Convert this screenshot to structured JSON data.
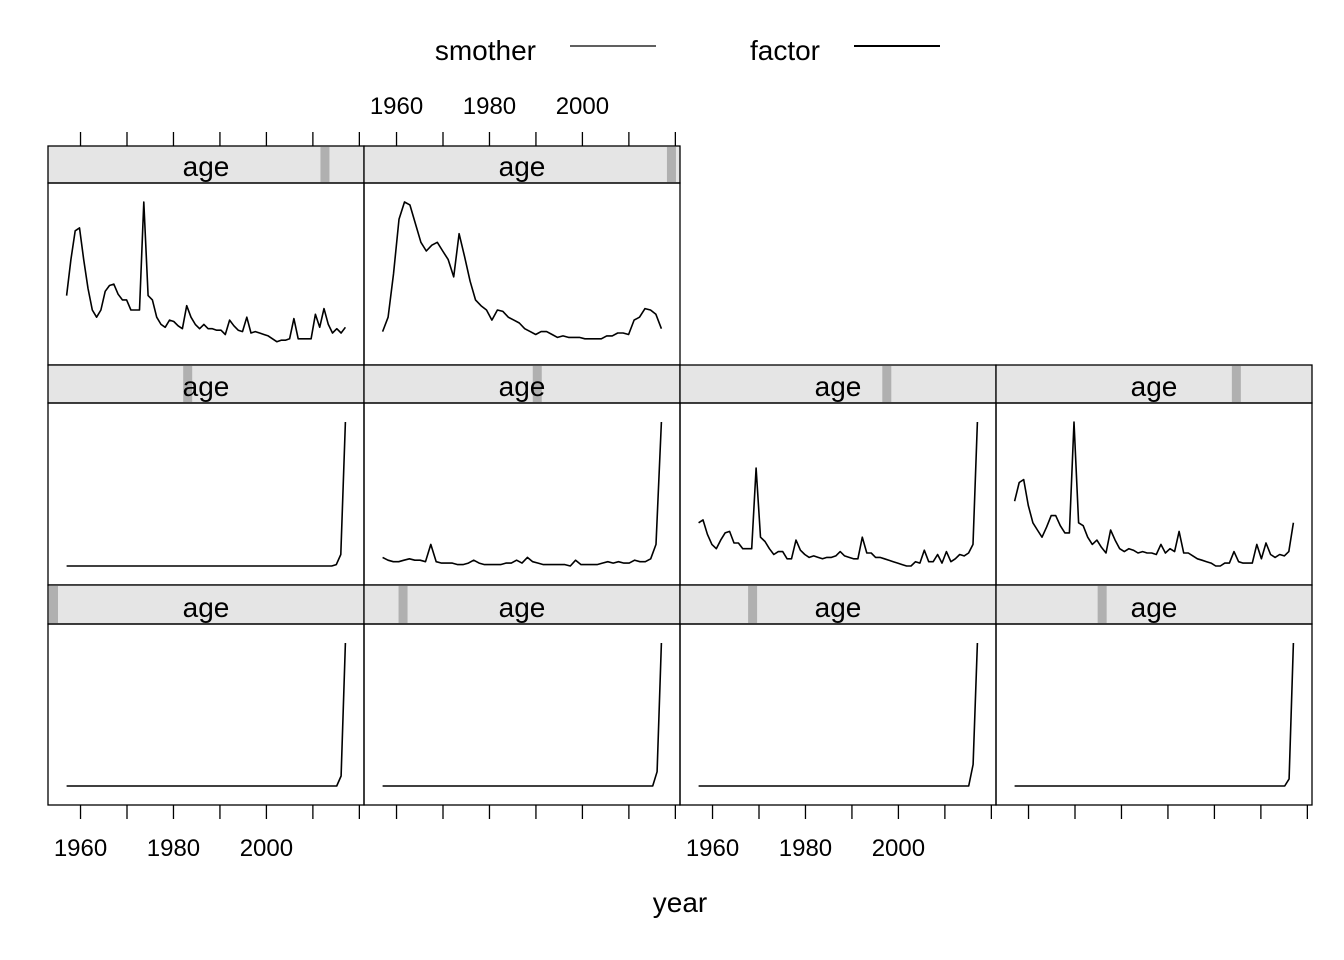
{
  "legend": {
    "items": [
      {
        "label": "smother",
        "stroke": "#000000",
        "weight": "thin"
      },
      {
        "label": "factor",
        "stroke": "#000000",
        "weight": "regular"
      }
    ]
  },
  "strip_label": "age",
  "xlabel": "year",
  "colors": {
    "strip_bg": "#e5e5e5",
    "strip_marker": "#b0b0b0",
    "line": "#000000",
    "frame": "#000000"
  },
  "chart_data": {
    "type": "line",
    "layout": {
      "columns": 4,
      "rows": 3
    },
    "xlim": [
      1953,
      2021
    ],
    "x_ticks": [
      1960,
      1970,
      1980,
      1990,
      2000,
      2010,
      2020
    ],
    "x_tick_labels": [
      1960,
      1980,
      2000
    ],
    "xlabel": "year",
    "panels": [
      {
        "row": 1,
        "col": 1,
        "strip": "age",
        "strip_level": 0.89,
        "x_start": 1957,
        "x_end": 2017,
        "y_values": [
          0.35,
          0.6,
          0.8,
          0.82,
          0.6,
          0.4,
          0.25,
          0.2,
          0.25,
          0.38,
          0.42,
          0.43,
          0.36,
          0.32,
          0.32,
          0.25,
          0.25,
          0.25,
          1.0,
          0.35,
          0.32,
          0.2,
          0.15,
          0.13,
          0.18,
          0.17,
          0.14,
          0.12,
          0.28,
          0.2,
          0.15,
          0.12,
          0.15,
          0.12,
          0.12,
          0.11,
          0.11,
          0.08,
          0.18,
          0.14,
          0.11,
          0.1,
          0.2,
          0.09,
          0.1,
          0.09,
          0.08,
          0.07,
          0.05,
          0.03,
          0.04,
          0.04,
          0.05,
          0.19,
          0.05,
          0.05,
          0.05,
          0.05,
          0.22,
          0.13,
          0.26,
          0.15,
          0.09,
          0.12,
          0.09,
          0.13
        ]
      },
      {
        "row": 1,
        "col": 2,
        "strip": "age",
        "strip_level": 0.99,
        "x_start": 1957,
        "x_end": 2017,
        "y_values": [
          0.1,
          0.2,
          0.5,
          0.88,
          1.0,
          0.98,
          0.85,
          0.72,
          0.66,
          0.7,
          0.72,
          0.66,
          0.6,
          0.48,
          0.78,
          0.62,
          0.45,
          0.32,
          0.28,
          0.25,
          0.18,
          0.25,
          0.24,
          0.2,
          0.18,
          0.16,
          0.12,
          0.1,
          0.08,
          0.1,
          0.1,
          0.08,
          0.06,
          0.07,
          0.06,
          0.06,
          0.06,
          0.05,
          0.05,
          0.05,
          0.05,
          0.07,
          0.07,
          0.09,
          0.09,
          0.08,
          0.18,
          0.2,
          0.26,
          0.25,
          0.22,
          0.12
        ]
      },
      {
        "row": 2,
        "col": 1,
        "strip": "age",
        "strip_level": 0.44,
        "x_start": 1957,
        "x_end": 2017,
        "y_values": [
          0.0,
          0.0,
          0.0,
          0.0,
          0.0,
          0.0,
          0.0,
          0.0,
          0.0,
          0.0,
          0.0,
          0.0,
          0.0,
          0.0,
          0.0,
          0.0,
          0.0,
          0.0,
          0.0,
          0.0,
          0.0,
          0.0,
          0.0,
          0.0,
          0.0,
          0.0,
          0.0,
          0.0,
          0.0,
          0.0,
          0.0,
          0.0,
          0.0,
          0.0,
          0.0,
          0.0,
          0.0,
          0.0,
          0.0,
          0.0,
          0.0,
          0.0,
          0.0,
          0.0,
          0.0,
          0.0,
          0.0,
          0.0,
          0.0,
          0.0,
          0.0,
          0.0,
          0.0,
          0.0,
          0.0,
          0.0,
          0.0,
          0.0,
          0.0,
          0.01,
          0.08,
          1.0
        ]
      },
      {
        "row": 2,
        "col": 2,
        "strip": "age",
        "strip_level": 0.55,
        "x_start": 1957,
        "x_end": 2017,
        "y_values": [
          0.06,
          0.04,
          0.03,
          0.03,
          0.04,
          0.05,
          0.04,
          0.04,
          0.03,
          0.15,
          0.03,
          0.02,
          0.02,
          0.02,
          0.01,
          0.01,
          0.02,
          0.04,
          0.02,
          0.01,
          0.01,
          0.01,
          0.01,
          0.02,
          0.02,
          0.04,
          0.02,
          0.06,
          0.03,
          0.02,
          0.01,
          0.01,
          0.01,
          0.01,
          0.01,
          0.0,
          0.04,
          0.01,
          0.01,
          0.01,
          0.01,
          0.02,
          0.03,
          0.02,
          0.03,
          0.02,
          0.02,
          0.04,
          0.03,
          0.03,
          0.05,
          0.15,
          1.0
        ]
      },
      {
        "row": 2,
        "col": 3,
        "strip": "age",
        "strip_level": 0.66,
        "x_start": 1957,
        "x_end": 2017,
        "y_values": [
          0.3,
          0.32,
          0.22,
          0.15,
          0.12,
          0.18,
          0.23,
          0.24,
          0.16,
          0.16,
          0.12,
          0.12,
          0.12,
          0.68,
          0.2,
          0.17,
          0.12,
          0.08,
          0.1,
          0.1,
          0.05,
          0.05,
          0.18,
          0.11,
          0.08,
          0.06,
          0.07,
          0.06,
          0.05,
          0.06,
          0.06,
          0.07,
          0.1,
          0.07,
          0.06,
          0.05,
          0.05,
          0.2,
          0.09,
          0.09,
          0.06,
          0.06,
          0.05,
          0.04,
          0.03,
          0.02,
          0.01,
          0.0,
          0.0,
          0.03,
          0.02,
          0.11,
          0.03,
          0.03,
          0.08,
          0.02,
          0.1,
          0.03,
          0.05,
          0.08,
          0.07,
          0.09,
          0.15,
          1.0
        ]
      },
      {
        "row": 2,
        "col": 4,
        "strip": "age",
        "strip_level": 0.77,
        "x_start": 1957,
        "x_end": 2017,
        "y_values": [
          0.45,
          0.58,
          0.6,
          0.42,
          0.3,
          0.25,
          0.2,
          0.27,
          0.35,
          0.35,
          0.28,
          0.23,
          0.23,
          1.0,
          0.3,
          0.28,
          0.2,
          0.15,
          0.18,
          0.13,
          0.09,
          0.25,
          0.18,
          0.12,
          0.1,
          0.12,
          0.11,
          0.09,
          0.1,
          0.09,
          0.09,
          0.08,
          0.15,
          0.09,
          0.12,
          0.1,
          0.24,
          0.09,
          0.09,
          0.07,
          0.05,
          0.04,
          0.03,
          0.02,
          0.0,
          0.0,
          0.02,
          0.02,
          0.1,
          0.03,
          0.02,
          0.02,
          0.02,
          0.15,
          0.05,
          0.16,
          0.08,
          0.06,
          0.08,
          0.07,
          0.1,
          0.3
        ]
      },
      {
        "row": 3,
        "col": 1,
        "strip": "age",
        "strip_level": 0.0,
        "x_start": 1957,
        "x_end": 2017,
        "y_values": [
          0.0,
          0.0,
          0.0,
          0.0,
          0.0,
          0.0,
          0.0,
          0.0,
          0.0,
          0.0,
          0.0,
          0.0,
          0.0,
          0.0,
          0.0,
          0.0,
          0.0,
          0.0,
          0.0,
          0.0,
          0.0,
          0.0,
          0.0,
          0.0,
          0.0,
          0.0,
          0.0,
          0.0,
          0.0,
          0.0,
          0.0,
          0.0,
          0.0,
          0.0,
          0.0,
          0.0,
          0.0,
          0.0,
          0.0,
          0.0,
          0.0,
          0.0,
          0.0,
          0.0,
          0.0,
          0.0,
          0.0,
          0.0,
          0.0,
          0.0,
          0.0,
          0.0,
          0.0,
          0.0,
          0.0,
          0.0,
          0.0,
          0.0,
          0.0,
          0.0,
          0.0,
          0.0,
          0.0,
          0.07,
          1.0
        ]
      },
      {
        "row": 3,
        "col": 2,
        "strip": "age",
        "strip_level": 0.11,
        "x_start": 1957,
        "x_end": 2017,
        "y_values": [
          0.0,
          0.0,
          0.0,
          0.0,
          0.0,
          0.0,
          0.0,
          0.0,
          0.0,
          0.0,
          0.0,
          0.0,
          0.0,
          0.0,
          0.0,
          0.0,
          0.0,
          0.0,
          0.0,
          0.0,
          0.0,
          0.0,
          0.0,
          0.0,
          0.0,
          0.0,
          0.0,
          0.0,
          0.0,
          0.0,
          0.0,
          0.0,
          0.0,
          0.0,
          0.0,
          0.0,
          0.0,
          0.0,
          0.0,
          0.0,
          0.0,
          0.0,
          0.0,
          0.0,
          0.0,
          0.0,
          0.0,
          0.0,
          0.0,
          0.0,
          0.0,
          0.0,
          0.0,
          0.0,
          0.0,
          0.0,
          0.0,
          0.0,
          0.0,
          0.0,
          0.0,
          0.0,
          0.0,
          0.1,
          1.0
        ]
      },
      {
        "row": 3,
        "col": 3,
        "strip": "age",
        "strip_level": 0.22,
        "x_start": 1957,
        "x_end": 2017,
        "y_values": [
          0.0,
          0.0,
          0.0,
          0.0,
          0.0,
          0.0,
          0.0,
          0.0,
          0.0,
          0.0,
          0.0,
          0.0,
          0.0,
          0.0,
          0.0,
          0.0,
          0.0,
          0.0,
          0.0,
          0.0,
          0.0,
          0.0,
          0.0,
          0.0,
          0.0,
          0.0,
          0.0,
          0.0,
          0.0,
          0.0,
          0.0,
          0.0,
          0.0,
          0.0,
          0.0,
          0.0,
          0.0,
          0.0,
          0.0,
          0.0,
          0.0,
          0.0,
          0.0,
          0.0,
          0.0,
          0.0,
          0.0,
          0.0,
          0.0,
          0.0,
          0.0,
          0.0,
          0.0,
          0.0,
          0.0,
          0.0,
          0.0,
          0.0,
          0.0,
          0.0,
          0.0,
          0.0,
          0.0,
          0.15,
          1.0
        ]
      },
      {
        "row": 3,
        "col": 4,
        "strip": "age",
        "strip_level": 0.33,
        "x_start": 1957,
        "x_end": 2017,
        "y_values": [
          0.0,
          0.0,
          0.0,
          0.0,
          0.0,
          0.0,
          0.0,
          0.0,
          0.0,
          0.0,
          0.0,
          0.0,
          0.0,
          0.0,
          0.0,
          0.0,
          0.0,
          0.0,
          0.0,
          0.0,
          0.0,
          0.0,
          0.0,
          0.0,
          0.0,
          0.0,
          0.0,
          0.0,
          0.0,
          0.0,
          0.0,
          0.0,
          0.0,
          0.0,
          0.0,
          0.0,
          0.0,
          0.0,
          0.0,
          0.0,
          0.0,
          0.0,
          0.0,
          0.0,
          0.0,
          0.0,
          0.0,
          0.0,
          0.0,
          0.0,
          0.0,
          0.0,
          0.0,
          0.0,
          0.0,
          0.0,
          0.0,
          0.0,
          0.0,
          0.0,
          0.0,
          0.0,
          0.0,
          0.05,
          1.0
        ]
      }
    ]
  }
}
